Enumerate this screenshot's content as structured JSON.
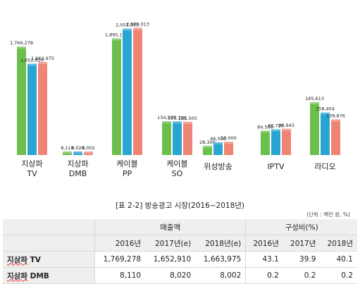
{
  "chart_data": {
    "type": "bar",
    "categories": [
      {
        "line1": "지상파",
        "line2": "TV"
      },
      {
        "line1": "지상파",
        "line2": "DMB"
      },
      {
        "line1": "케이블",
        "line2": "PP"
      },
      {
        "line1": "케이블",
        "line2": "SO"
      },
      {
        "line1": "위성방송",
        "line2": ""
      },
      {
        "line1": "IPTV",
        "line2": ""
      },
      {
        "line1": "라디오",
        "line2": ""
      }
    ],
    "series": [
      {
        "color": "#6cbf4c",
        "values": [
          1769278,
          8110,
          1895123,
          134585,
          28300,
          84586,
          185613
        ],
        "labels": [
          "1,769,278",
          "8,110",
          "1,895,123",
          "134,585",
          "28,300",
          "84,586",
          "185,613"
        ]
      },
      {
        "color": "#2aa5d2",
        "values": [
          1652910,
          8020,
          2053395,
          133768,
          46500,
          88726,
          158404
        ],
        "labels": [
          "1,652,910",
          "8,020",
          "2,053,395",
          "133,768",
          "46,500",
          "88,726",
          "158,404"
        ]
      },
      {
        "color": "#ef8474",
        "values": [
          1663975,
          8002,
          2070013,
          131505,
          50000,
          90943,
          139876
        ],
        "labels": [
          "1,663,975",
          "8,002",
          "2,070,013",
          "131,505",
          "50,000",
          "90,943",
          "139,876"
        ]
      }
    ]
  },
  "table": {
    "caption": "[표 2-2] 방송광고 시장(2016~2018년)",
    "unit": "(단위 : 백만 원, %)",
    "group_sales": "매출액",
    "group_ratio": "구성비(%)",
    "years": [
      "2016년",
      "2017년(e)",
      "2018년(e)",
      "2016년",
      "2017년",
      "2018년"
    ],
    "rows": [
      {
        "name_a": "지상파",
        "name_b": " TV",
        "cells": [
          "1,769,278",
          "1,652,910",
          "1,663,975",
          "43.1",
          "39.9",
          "40.1"
        ]
      },
      {
        "name_a": "지상파",
        "name_b": " DMB",
        "cells": [
          "8,110",
          "8,020",
          "8,002",
          "0.2",
          "0.2",
          "0.2"
        ]
      }
    ]
  }
}
